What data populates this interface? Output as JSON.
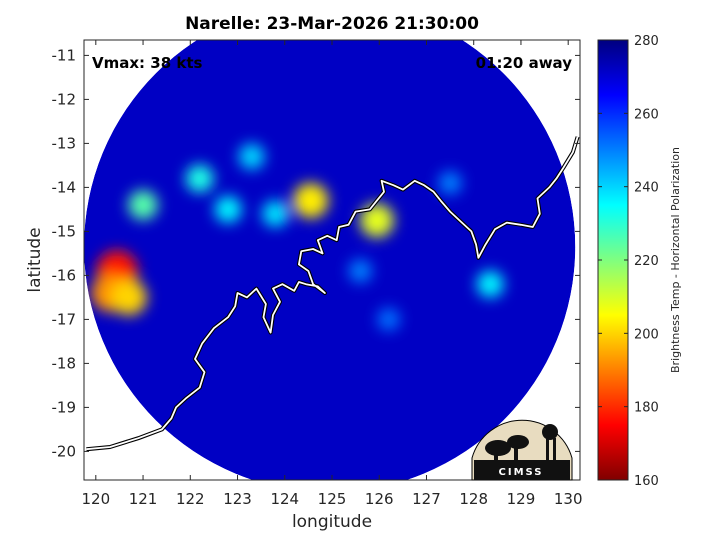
{
  "chart_data": {
    "type": "heatmap",
    "title": "Narelle: 23-Mar-2026 21:30:00",
    "xlabel": "longitude",
    "ylabel": "latitude",
    "xlim": [
      119.75,
      130.25
    ],
    "ylim": [
      -20.65,
      -10.65
    ],
    "xticks": [
      120,
      121,
      122,
      123,
      124,
      125,
      126,
      127,
      128,
      129,
      130
    ],
    "yticks": [
      -11,
      -12,
      -13,
      -14,
      -15,
      -16,
      -17,
      -18,
      -19,
      -20
    ],
    "grid": false,
    "colorbar": {
      "label": "Brightness Temp - Horizontal Polarization",
      "range": [
        160,
        280
      ],
      "ticks": [
        160,
        180,
        200,
        220,
        240,
        260,
        280
      ],
      "colormap": "jet"
    },
    "annotations": {
      "vmax": "Vmax: 38 kts",
      "time_offset": "01:20 away"
    },
    "swath": {
      "center_lon": 124.95,
      "center_lat": -15.35,
      "radius_deg": 5.2
    },
    "background_temp_k": 272,
    "features": [
      {
        "lon": 120.45,
        "lat": -15.9,
        "temp_k": 178
      },
      {
        "lon": 120.3,
        "lat": -16.4,
        "temp_k": 192
      },
      {
        "lon": 120.7,
        "lat": -16.5,
        "temp_k": 200
      },
      {
        "lon": 124.55,
        "lat": -14.3,
        "temp_k": 203
      },
      {
        "lon": 125.95,
        "lat": -14.75,
        "temp_k": 208
      },
      {
        "lon": 121.0,
        "lat": -14.4,
        "temp_k": 225
      },
      {
        "lon": 122.2,
        "lat": -13.8,
        "temp_k": 232
      },
      {
        "lon": 123.3,
        "lat": -13.3,
        "temp_k": 240
      },
      {
        "lon": 122.8,
        "lat": -14.5,
        "temp_k": 236
      },
      {
        "lon": 123.8,
        "lat": -14.6,
        "temp_k": 238
      },
      {
        "lon": 128.35,
        "lat": -16.2,
        "temp_k": 236
      },
      {
        "lon": 127.5,
        "lat": -13.9,
        "temp_k": 250
      },
      {
        "lon": 125.6,
        "lat": -15.9,
        "temp_k": 250
      },
      {
        "lon": 126.2,
        "lat": -17.0,
        "temp_k": 252
      }
    ],
    "coastline": [
      [
        [
          119.8,
          -19.95
        ],
        [
          120.3,
          -19.9
        ],
        [
          120.9,
          -19.7
        ],
        [
          121.4,
          -19.5
        ],
        [
          121.6,
          -19.25
        ],
        [
          121.7,
          -19.0
        ],
        [
          121.9,
          -18.8
        ],
        [
          122.2,
          -18.55
        ],
        [
          122.3,
          -18.2
        ],
        [
          122.1,
          -17.9
        ],
        [
          122.25,
          -17.55
        ],
        [
          122.5,
          -17.2
        ],
        [
          122.8,
          -16.95
        ],
        [
          122.95,
          -16.7
        ],
        [
          123.0,
          -16.4
        ],
        [
          123.2,
          -16.5
        ],
        [
          123.4,
          -16.3
        ],
        [
          123.6,
          -16.65
        ],
        [
          123.55,
          -16.95
        ],
        [
          123.7,
          -17.3
        ],
        [
          123.75,
          -16.9
        ],
        [
          123.9,
          -16.6
        ],
        [
          123.75,
          -16.3
        ],
        [
          123.95,
          -16.2
        ],
        [
          124.2,
          -16.35
        ],
        [
          124.3,
          -16.15
        ],
        [
          124.45,
          -16.2
        ],
        [
          124.7,
          -16.25
        ],
        [
          124.85,
          -16.4
        ],
        [
          124.6,
          -16.2
        ],
        [
          124.5,
          -15.9
        ],
        [
          124.3,
          -15.75
        ],
        [
          124.35,
          -15.45
        ],
        [
          124.6,
          -15.4
        ],
        [
          124.8,
          -15.5
        ],
        [
          124.7,
          -15.2
        ],
        [
          124.9,
          -15.1
        ],
        [
          125.1,
          -15.2
        ],
        [
          125.15,
          -14.9
        ],
        [
          125.35,
          -14.85
        ],
        [
          125.5,
          -14.55
        ],
        [
          125.8,
          -14.5
        ],
        [
          125.95,
          -14.3
        ],
        [
          126.1,
          -14.1
        ],
        [
          126.05,
          -13.85
        ],
        [
          126.3,
          -13.95
        ],
        [
          126.5,
          -14.05
        ],
        [
          126.75,
          -13.85
        ],
        [
          126.95,
          -13.95
        ],
        [
          127.15,
          -14.1
        ],
        [
          127.3,
          -14.3
        ],
        [
          127.5,
          -14.55
        ],
        [
          127.75,
          -14.8
        ],
        [
          127.95,
          -15.0
        ],
        [
          128.05,
          -15.3
        ],
        [
          128.1,
          -15.6
        ],
        [
          128.25,
          -15.3
        ],
        [
          128.45,
          -14.95
        ],
        [
          128.7,
          -14.8
        ],
        [
          129.0,
          -14.85
        ],
        [
          129.25,
          -14.9
        ],
        [
          129.4,
          -14.6
        ],
        [
          129.35,
          -14.25
        ],
        [
          129.6,
          -14.0
        ],
        [
          129.75,
          -13.8
        ],
        [
          129.9,
          -13.55
        ],
        [
          130.1,
          -13.2
        ],
        [
          130.2,
          -12.85
        ]
      ]
    ]
  }
}
